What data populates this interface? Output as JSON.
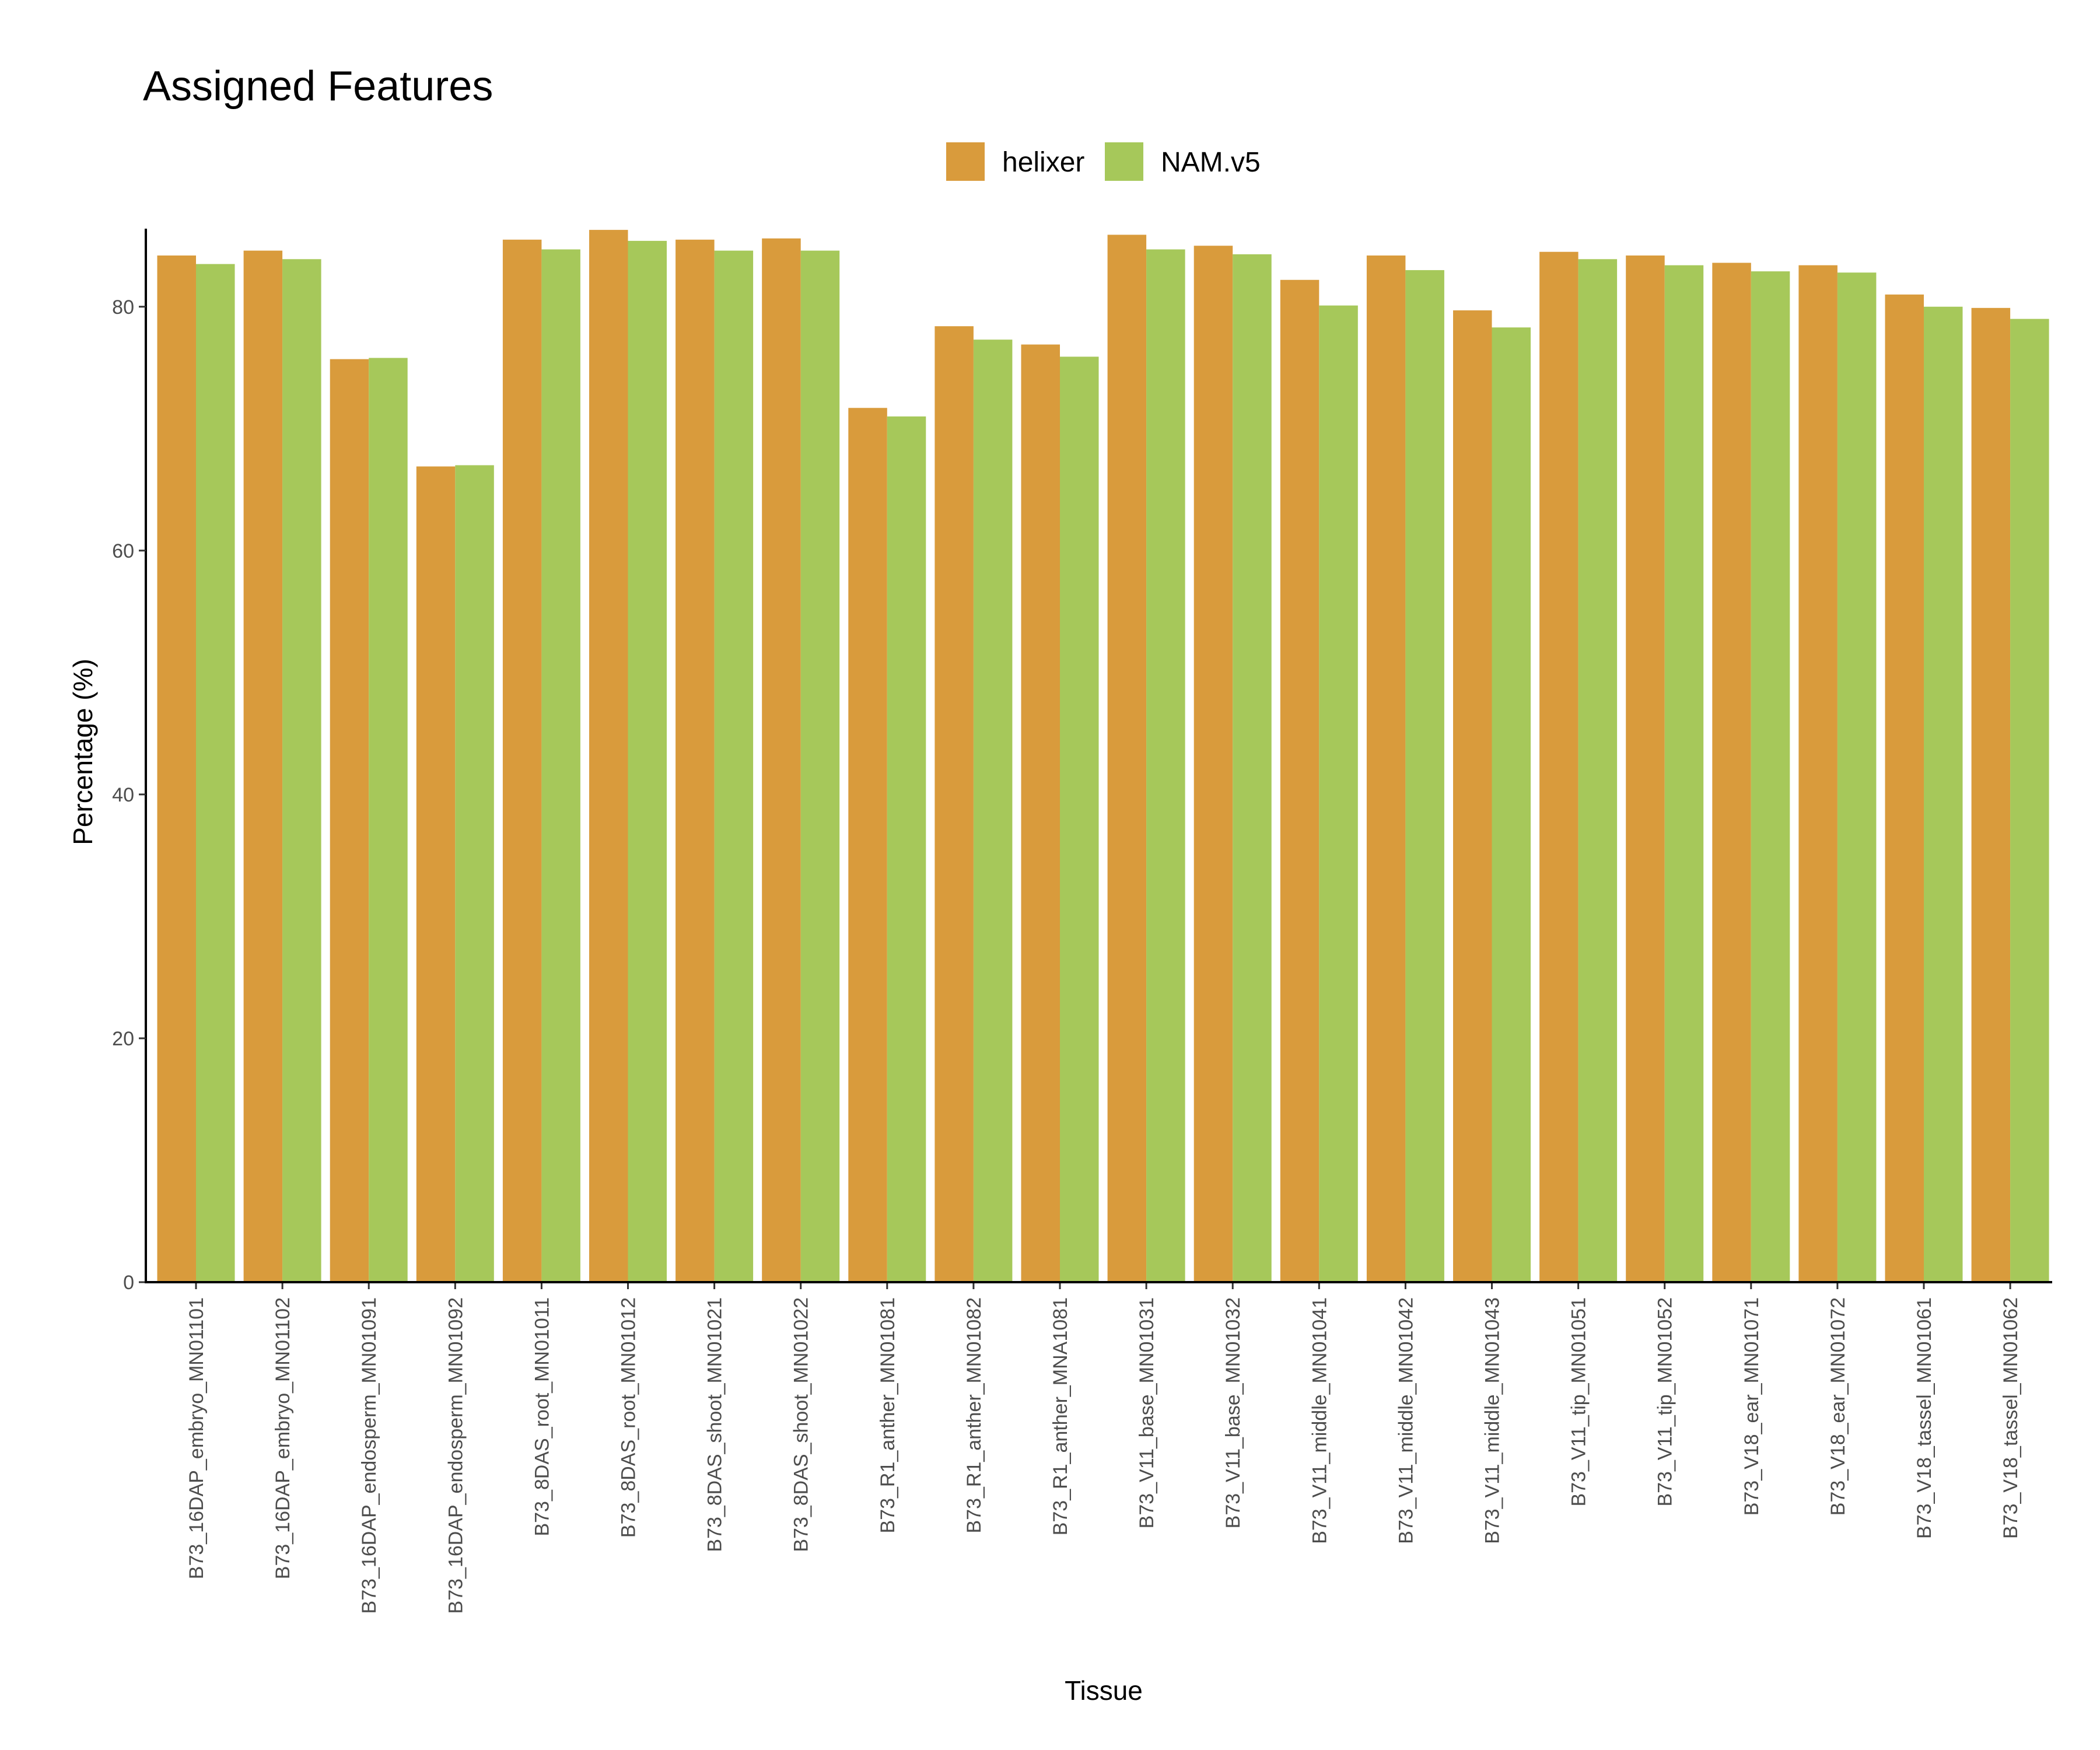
{
  "chart_data": {
    "type": "bar",
    "title": "Assigned Features",
    "xlabel": "Tissue",
    "ylabel": "Percentage (%)",
    "ylim": [
      0,
      86.4
    ],
    "yticks": [
      0,
      20,
      40,
      60,
      80
    ],
    "grid": false,
    "legend_position": "top",
    "categories": [
      "B73_16DAP_embryo_MN01101",
      "B73_16DAP_embryo_MN01102",
      "B73_16DAP_endosperm_MN01091",
      "B73_16DAP_endosperm_MN01092",
      "B73_8DAS_root_MN01011",
      "B73_8DAS_root_MN01012",
      "B73_8DAS_shoot_MN01021",
      "B73_8DAS_shoot_MN01022",
      "B73_R1_anther_MN01081",
      "B73_R1_anther_MN01082",
      "B73_R1_anther_MNA1081",
      "B73_V11_base_MN01031",
      "B73_V11_base_MN01032",
      "B73_V11_middle_MN01041",
      "B73_V11_middle_MN01042",
      "B73_V11_middle_MN01043",
      "B73_V11_tip_MN01051",
      "B73_V11_tip_MN01052",
      "B73_V18_ear_MN01071",
      "B73_V18_ear_MN01072",
      "B73_V18_tassel_MN01061",
      "B73_V18_tassel_MN01062"
    ],
    "series": [
      {
        "name": "helixer",
        "color": "#D99B3C",
        "values": [
          84.2,
          84.6,
          75.7,
          66.9,
          85.5,
          86.3,
          85.5,
          85.6,
          71.7,
          78.4,
          76.9,
          85.9,
          85.0,
          82.2,
          84.2,
          79.7,
          84.5,
          84.2,
          83.6,
          83.4,
          81.0,
          79.9
        ]
      },
      {
        "name": "NAM.v5",
        "color": "#A6C85A",
        "values": [
          83.5,
          83.9,
          75.8,
          67.0,
          84.7,
          85.4,
          84.6,
          84.6,
          71.0,
          77.3,
          75.9,
          84.7,
          84.3,
          80.1,
          83.0,
          78.3,
          83.9,
          83.4,
          82.9,
          82.8,
          80.0,
          79.0
        ]
      }
    ]
  }
}
